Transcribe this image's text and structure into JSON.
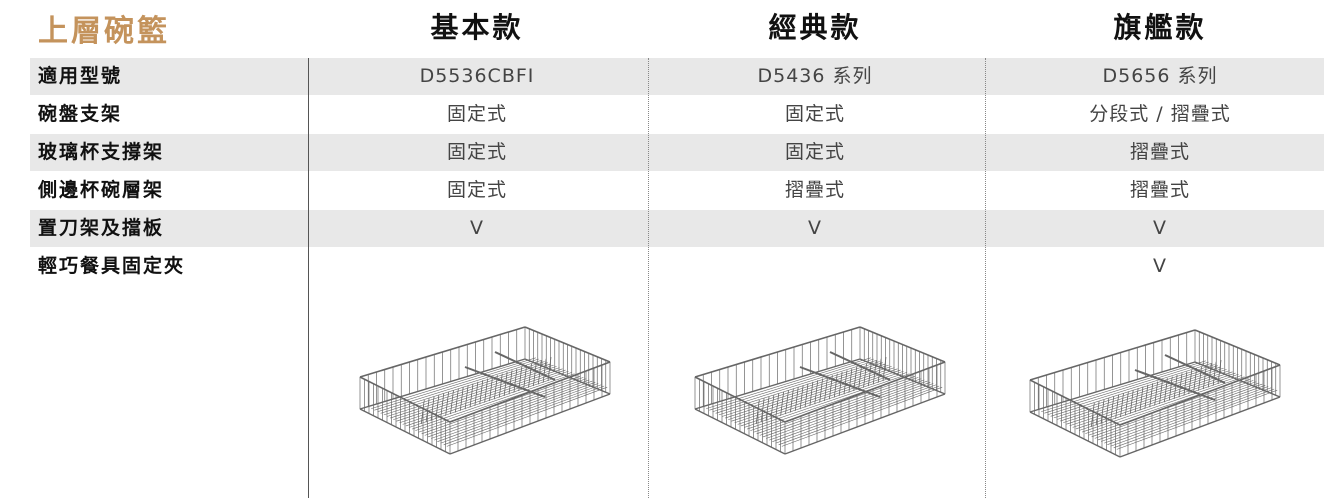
{
  "header": {
    "title": "上層碗籃",
    "columns": [
      "基本款",
      "經典款",
      "旗艦款"
    ]
  },
  "table": {
    "rows": [
      {
        "label": "適用型號",
        "cells": [
          "D5536CBFI",
          "D5436 系列",
          "D5656 系列"
        ]
      },
      {
        "label": "碗盤支架",
        "cells": [
          "固定式",
          "固定式",
          "分段式 / 摺疊式"
        ]
      },
      {
        "label": "玻璃杯支撐架",
        "cells": [
          "固定式",
          "固定式",
          "摺疊式"
        ]
      },
      {
        "label": "側邊杯碗層架",
        "cells": [
          "固定式",
          "摺疊式",
          "摺疊式"
        ]
      },
      {
        "label": "置刀架及擋板",
        "cells": [
          "V",
          "V",
          "V"
        ]
      },
      {
        "label": "輕巧餐具固定夾",
        "cells": [
          null,
          null,
          "V"
        ]
      }
    ]
  }
}
